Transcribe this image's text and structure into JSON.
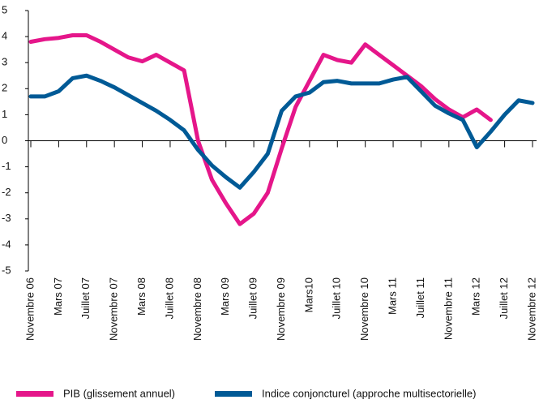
{
  "chart_data": {
    "type": "line",
    "categories": [
      "Novembre 06",
      null,
      "Mars 07",
      null,
      "Juillet 07",
      null,
      "Novembre 07",
      null,
      "Mars 08",
      null,
      "Juillet 08",
      null,
      "Novembre 08",
      null,
      "Mars 09",
      null,
      "Juillet 09",
      null,
      "Novembre 09",
      null,
      "Mars10",
      null,
      "Juillet 10",
      null,
      "Novembre 10",
      null,
      "Mars 11",
      null,
      "Juillet 11",
      null,
      "Novembre 11",
      null,
      "Mars 12",
      null,
      "Juillet 12",
      null,
      "Novembre 12"
    ],
    "series": [
      {
        "name": "PIB (glissement annuel)",
        "color": "#e5168a",
        "values": [
          3.8,
          3.9,
          3.95,
          4.05,
          4.05,
          3.8,
          3.5,
          3.2,
          3.05,
          3.3,
          3.0,
          2.7,
          0.0,
          -1.5,
          -2.4,
          -3.2,
          -2.8,
          -2.0,
          -0.3,
          1.3,
          2.3,
          3.3,
          3.1,
          3.0,
          3.7,
          3.3,
          2.9,
          2.5,
          2.1,
          1.6,
          1.2,
          0.9,
          1.2,
          0.8,
          null,
          null,
          null
        ]
      },
      {
        "name": "Indice conjoncturel (approche multisectorielle)",
        "color": "#005a96",
        "values": [
          1.7,
          1.7,
          1.9,
          2.4,
          2.5,
          2.3,
          2.05,
          1.75,
          1.45,
          1.15,
          0.8,
          0.4,
          -0.35,
          -0.95,
          -1.4,
          -1.8,
          -1.2,
          -0.5,
          1.15,
          1.7,
          1.85,
          2.25,
          2.3,
          2.2,
          2.2,
          2.2,
          2.35,
          2.45,
          1.9,
          1.35,
          1.05,
          0.8,
          -0.25,
          0.35,
          1.0,
          1.55,
          1.45
        ]
      }
    ],
    "ylim": [
      -5,
      5
    ],
    "yticks": [
      -5,
      -4,
      -3,
      -2,
      -1,
      0,
      1,
      2,
      3,
      4,
      5
    ],
    "legend": "bottom"
  }
}
